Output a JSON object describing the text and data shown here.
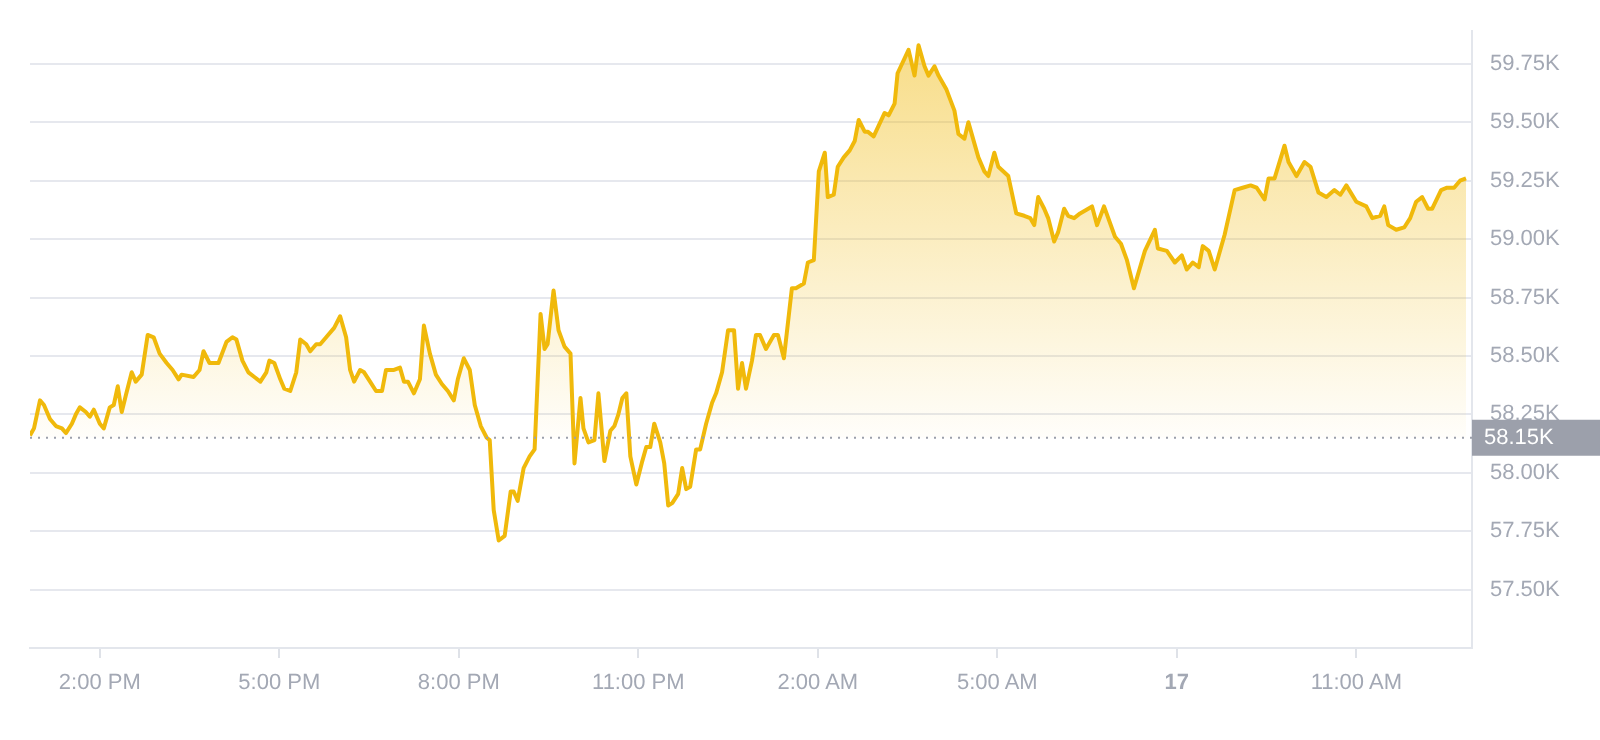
{
  "chart_data": {
    "type": "area",
    "x": [
      "--08-16T12:50",
      "--08-16T12:54",
      "--08-16T13:00",
      "--08-16T13:04",
      "--08-16T13:10",
      "--08-16T13:16",
      "--08-16T13:22",
      "--08-16T13:26",
      "--08-16T13:32",
      "--08-16T13:36",
      "--08-16T13:40",
      "--08-16T13:46",
      "--08-16T13:50",
      "--08-16T13:54",
      "--08-16T14:00",
      "--08-16T14:04",
      "--08-16T14:10",
      "--08-16T14:14",
      "--08-16T14:18",
      "--08-16T14:22",
      "--08-16T14:26",
      "--08-16T14:32",
      "--08-16T14:36",
      "--08-16T14:42",
      "--08-16T14:48",
      "--08-16T14:54",
      "--08-16T15:00",
      "--08-16T15:07",
      "--08-16T15:13",
      "--08-16T15:19",
      "--08-16T15:22",
      "--08-16T15:34",
      "--08-16T15:40",
      "--08-16T15:44",
      "--08-16T15:50",
      "--08-16T15:59",
      "--08-16T16:07",
      "--08-16T16:13",
      "--08-16T16:17",
      "--08-16T16:23",
      "--08-16T16:29",
      "--08-16T16:35",
      "--08-16T16:41",
      "--08-16T16:47",
      "--08-16T16:50",
      "--08-16T16:55",
      "--08-16T17:01",
      "--08-16T17:05",
      "--08-16T17:11",
      "--08-16T17:17",
      "--08-16T17:21",
      "--08-16T17:27",
      "--08-16T17:31",
      "--08-16T17:37",
      "--08-16T17:41",
      "--08-16T17:47",
      "--08-16T17:55",
      "--08-16T18:01",
      "--08-16T18:07",
      "--08-16T18:11",
      "--08-16T18:15",
      "--08-16T18:21",
      "--08-16T18:25",
      "--08-16T18:31",
      "--08-16T18:37",
      "--08-16T18:43",
      "--08-16T18:47",
      "--08-16T18:55",
      "--08-16T19:01",
      "--08-16T19:05",
      "--08-16T19:09",
      "--08-16T19:15",
      "--08-16T19:21",
      "--08-16T19:25",
      "--08-16T19:31",
      "--08-16T19:37",
      "--08-16T19:43",
      "--08-16T19:49",
      "--08-16T19:55",
      "--08-16T19:59",
      "--08-16T20:05",
      "--08-16T20:11",
      "--08-16T20:16",
      "--08-16T20:22",
      "--08-16T20:28",
      "--08-16T20:31",
      "--08-16T20:35",
      "--08-16T20:40",
      "--08-16T20:46",
      "--08-16T20:52",
      "--08-16T20:55",
      "--08-16T20:59",
      "--08-16T21:05",
      "--08-16T21:11",
      "--08-16T21:16",
      "--08-16T21:22",
      "--08-16T21:26",
      "--08-16T21:29",
      "--08-16T21:35",
      "--08-16T21:40",
      "--08-16T21:46",
      "--08-16T21:52",
      "--08-16T21:56",
      "--08-16T22:02",
      "--08-16T22:05",
      "--08-16T22:10",
      "--08-16T22:16",
      "--08-16T22:20",
      "--08-16T22:26",
      "--08-16T22:32",
      "--08-16T22:36",
      "--08-16T22:40",
      "--08-16T22:44",
      "--08-16T22:48",
      "--08-16T22:52",
      "--08-16T22:58",
      "--08-16T23:04",
      "--08-16T23:08",
      "--08-16T23:12",
      "--08-16T23:16",
      "--08-16T23:22",
      "--08-16T23:26",
      "--08-16T23:30",
      "--08-16T23:34",
      "--08-16T23:40",
      "--08-16T23:44",
      "--08-16T23:48",
      "--08-16T23:52",
      "--08-16T23:58",
      "--08-17T00:02",
      "--08-17T00:08",
      "--08-17T00:14",
      "--08-17T00:18",
      "--08-17T00:24",
      "--08-17T00:30",
      "--08-17T00:36",
      "--08-17T00:40",
      "--08-17T00:44",
      "--08-17T00:48",
      "--08-17T00:54",
      "--08-17T00:58",
      "--08-17T01:02",
      "--08-17T01:08",
      "--08-17T01:16",
      "--08-17T01:20",
      "--08-17T01:26",
      "--08-17T01:34",
      "--08-17T01:38",
      "--08-17T01:46",
      "--08-17T01:50",
      "--08-17T01:56",
      "--08-17T02:01",
      "--08-17T02:07",
      "--08-17T02:10",
      "--08-17T02:16",
      "--08-17T02:20",
      "--08-17T02:26",
      "--08-17T02:32",
      "--08-17T02:37",
      "--08-17T02:41",
      "--08-17T02:47",
      "--08-17T02:50",
      "--08-17T02:56",
      "--08-17T03:07",
      "--08-17T03:11",
      "--08-17T03:17",
      "--08-17T03:20",
      "--08-17T03:31",
      "--08-17T03:37",
      "--08-17T03:41",
      "--08-17T03:47",
      "--08-17T03:51",
      "--08-17T03:57",
      "--08-17T04:01",
      "--08-17T04:09",
      "--08-17T04:17",
      "--08-17T04:21",
      "--08-17T04:27",
      "--08-17T04:31",
      "--08-17T04:37",
      "--08-17T04:41",
      "--08-17T04:47",
      "--08-17T04:51",
      "--08-17T04:57",
      "--08-17T05:01",
      "--08-17T05:11",
      "--08-17T05:19",
      "--08-17T05:27",
      "--08-17T05:33",
      "--08-17T05:37",
      "--08-17T05:41",
      "--08-17T05:47",
      "--08-17T05:51",
      "--08-17T05:57",
      "--08-17T06:01",
      "--08-17T06:07",
      "--08-17T06:11",
      "--08-17T06:17",
      "--08-17T06:23",
      "--08-17T06:35",
      "--08-17T06:40",
      "--08-17T06:47",
      "--08-17T06:58",
      "--08-17T07:04",
      "--08-17T07:10",
      "--08-17T07:17",
      "--08-17T07:28",
      "--08-17T07:38",
      "--08-17T07:41",
      "--08-17T07:50",
      "--08-17T07:58",
      "--08-17T08:05",
      "--08-17T08:10",
      "--08-17T08:16",
      "--08-17T08:22",
      "--08-17T08:26",
      "--08-17T08:32",
      "--08-17T08:38",
      "--08-17T08:48",
      "--08-17T08:58",
      "--08-17T09:06",
      "--08-17T09:14",
      "--08-17T09:20",
      "--08-17T09:28",
      "--08-17T09:32",
      "--08-17T09:38",
      "--08-17T09:48",
      "--08-17T09:52",
      "--08-17T10:00",
      "--08-17T10:08",
      "--08-17T10:14",
      "--08-17T10:22",
      "--08-17T10:30",
      "--08-17T10:38",
      "--08-17T10:44",
      "--08-17T10:50",
      "--08-17T11:00",
      "--08-17T11:10",
      "--08-17T11:16",
      "--08-17T11:24",
      "--08-17T11:28",
      "--08-17T11:32",
      "--08-17T11:40",
      "--08-17T11:48",
      "--08-17T11:54",
      "--08-17T12:00",
      "--08-17T12:06",
      "--08-17T12:12",
      "--08-17T12:16",
      "--08-17T12:25",
      "--08-17T12:31",
      "--08-17T12:38",
      "--08-17T12:44",
      "--08-17T12:50"
    ],
    "series": [
      {
        "color": "#f0b90b",
        "values": [
          58160,
          58190,
          58310,
          58290,
          58230,
          58200,
          58190,
          58170,
          58210,
          58250,
          58280,
          58260,
          58240,
          58270,
          58210,
          58190,
          58280,
          58290,
          58370,
          58260,
          58330,
          58430,
          58390,
          58420,
          58590,
          58580,
          58510,
          58470,
          58440,
          58400,
          58420,
          58410,
          58440,
          58520,
          58470,
          58470,
          58560,
          58580,
          58570,
          58480,
          58430,
          58410,
          58390,
          58430,
          58480,
          58470,
          58400,
          58360,
          58350,
          58430,
          58570,
          58550,
          58520,
          58550,
          58550,
          58580,
          58620,
          58670,
          58580,
          58440,
          58390,
          58440,
          58430,
          58390,
          58350,
          58350,
          58440,
          58440,
          58450,
          58390,
          58390,
          58340,
          58400,
          58630,
          58510,
          58420,
          58380,
          58350,
          58310,
          58400,
          58490,
          58440,
          58290,
          58200,
          58150,
          58140,
          57840,
          57710,
          57730,
          57920,
          57920,
          57880,
          58020,
          58070,
          58100,
          58680,
          58530,
          58550,
          58780,
          58610,
          58540,
          58510,
          58040,
          58320,
          58190,
          58130,
          58140,
          58340,
          58050,
          58180,
          58200,
          58250,
          58320,
          58340,
          58070,
          57950,
          58050,
          58110,
          58110,
          58210,
          58130,
          58040,
          57860,
          57870,
          57910,
          58020,
          57930,
          57940,
          58100,
          58100,
          58210,
          58300,
          58340,
          58430,
          58610,
          58610,
          58360,
          58470,
          58360,
          58480,
          58590,
          58590,
          58530,
          58590,
          58590,
          58490,
          58790,
          58790,
          58810,
          58900,
          58910,
          59290,
          59370,
          59180,
          59190,
          59310,
          59350,
          59380,
          59420,
          59510,
          59460,
          59460,
          59440,
          59540,
          59530,
          59580,
          59710,
          59810,
          59700,
          59830,
          59740,
          59700,
          59740,
          59700,
          59640,
          59550,
          59450,
          59430,
          59500,
          59410,
          59350,
          59290,
          59270,
          59370,
          59310,
          59270,
          59110,
          59100,
          59090,
          59060,
          59180,
          59130,
          59090,
          58990,
          59030,
          59130,
          59100,
          59090,
          59110,
          59140,
          59060,
          59140,
          59010,
          58980,
          58910,
          58790,
          58950,
          59040,
          58960,
          58950,
          58900,
          58930,
          58870,
          58900,
          58880,
          58970,
          58950,
          58870,
          59020,
          59210,
          59220,
          59230,
          59220,
          59170,
          59260,
          59260,
          59400,
          59330,
          59270,
          59330,
          59310,
          59200,
          59180,
          59210,
          59190,
          59230,
          59160,
          59140,
          59090,
          59100,
          59140,
          59060,
          59040,
          59050,
          59090,
          59160,
          59180,
          59130,
          59130,
          59210,
          59220,
          59220,
          59250,
          59260
        ]
      }
    ],
    "xlim": [
      "--08-16T12:50",
      "--08-17T12:56"
    ],
    "xticks": [
      {
        "value": "--08-16T14:00",
        "label": "2:00 PM"
      },
      {
        "value": "--08-16T17:00",
        "label": "5:00 PM"
      },
      {
        "value": "--08-16T20:00",
        "label": "8:00 PM"
      },
      {
        "value": "--08-16T23:00",
        "label": "11:00 PM"
      },
      {
        "value": "--08-17T02:00",
        "label": "2:00 AM"
      },
      {
        "value": "--08-17T05:00",
        "label": "5:00 AM"
      },
      {
        "value": "--08-17T08:00",
        "label": "17"
      },
      {
        "value": "--08-17T11:00",
        "label": "11:00 AM"
      }
    ],
    "ylim": [
      57250,
      59890
    ],
    "yticks": [
      {
        "value": 57500,
        "label": "57.50K"
      },
      {
        "value": 57750,
        "label": "57.75K"
      },
      {
        "value": 58000,
        "label": "58.00K"
      },
      {
        "value": 58250,
        "label": "58.25K"
      },
      {
        "value": 58500,
        "label": "58.50K"
      },
      {
        "value": 58750,
        "label": "58.75K"
      },
      {
        "value": 59000,
        "label": "59.00K"
      },
      {
        "value": 59250,
        "label": "59.25K"
      },
      {
        "value": 59500,
        "label": "59.50K"
      },
      {
        "value": 59750,
        "label": "59.75K"
      }
    ],
    "ref_lines": [
      {
        "axis": "y",
        "value": 58150,
        "label": "58.15K",
        "color": "#9ca0ab",
        "line_style": "dotted"
      }
    ],
    "grid": "y",
    "legend": false,
    "marker": "none",
    "line_style": "solid"
  }
}
